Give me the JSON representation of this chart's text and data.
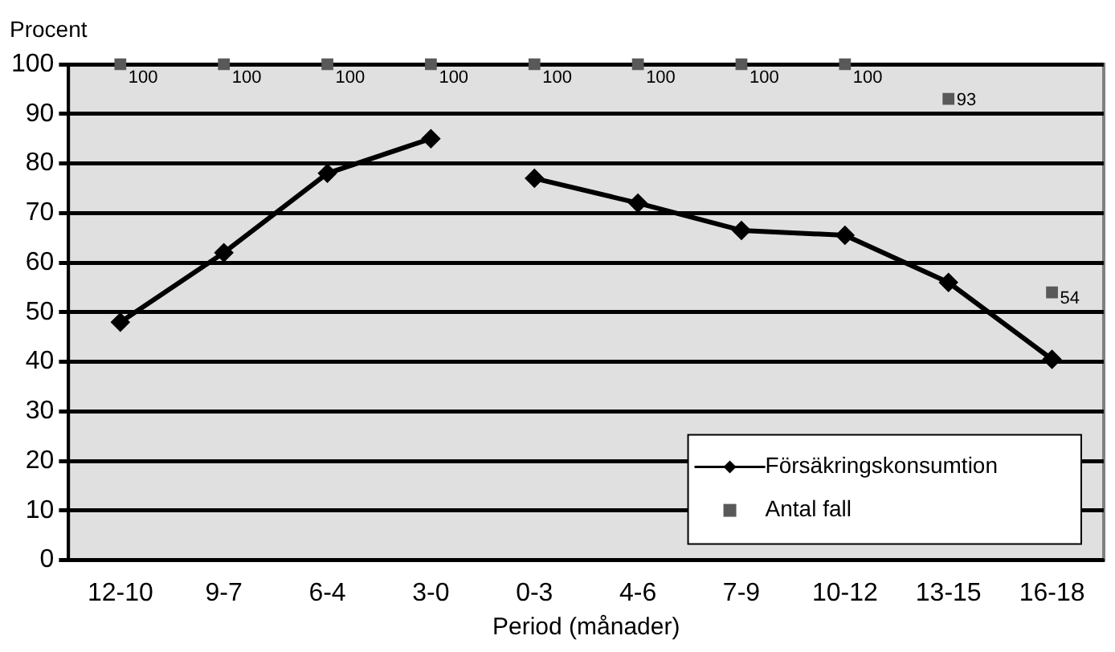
{
  "chart_data": {
    "type": "line",
    "xlabel": "Period (månader)",
    "ylabel": "Procent",
    "categories": [
      "12-10",
      "9-7",
      "6-4",
      "3-0",
      "0-3",
      "4-6",
      "7-9",
      "10-12",
      "13-15",
      "16-18"
    ],
    "series": [
      {
        "name": "Försäkringskonsumtion",
        "color": "#000000",
        "marker": "diamond",
        "values": [
          48,
          62,
          78,
          85,
          null,
          null,
          null,
          null,
          null,
          null
        ]
      },
      {
        "color": "#000000",
        "marker": "diamond",
        "values": [
          null,
          null,
          null,
          null,
          77,
          72,
          66.5,
          65.5,
          56,
          40.5
        ]
      },
      {
        "name": "Antal fall",
        "type": "scatter",
        "color": "#595959",
        "marker": "square",
        "values": [
          100,
          100,
          100,
          100,
          100,
          100,
          100,
          100,
          93,
          54
        ],
        "value_labels": [
          "100",
          "100",
          "100",
          "100",
          "100",
          "100",
          "100",
          "100",
          "93",
          "54"
        ]
      }
    ],
    "ylim": [
      0,
      100
    ],
    "yticks": [
      0,
      10,
      20,
      30,
      40,
      50,
      60,
      70,
      80,
      90,
      100
    ],
    "grid": "y",
    "legend": "bottom right"
  }
}
